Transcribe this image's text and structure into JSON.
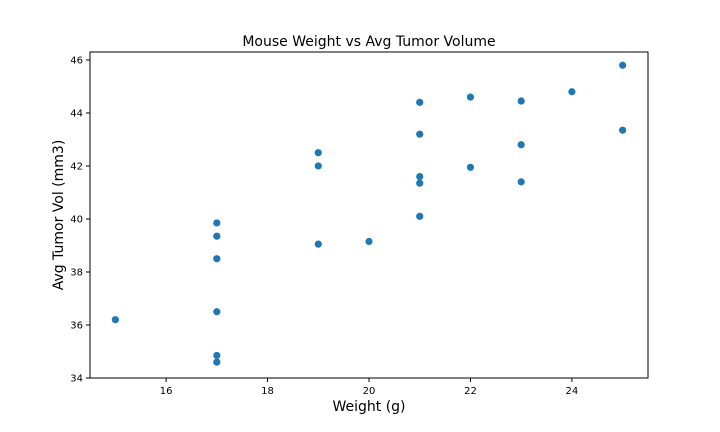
{
  "chart_data": {
    "type": "scatter",
    "title": "Mouse Weight vs Avg Tumor Volume",
    "xlabel": "Weight (g)",
    "ylabel": "Avg Tumor Vol (mm3)",
    "xlim": [
      14.5,
      25.5
    ],
    "ylim": [
      34,
      46.3
    ],
    "xticks": [
      16,
      18,
      20,
      22,
      24
    ],
    "yticks": [
      34,
      36,
      38,
      40,
      42,
      44,
      46
    ],
    "grid": false,
    "marker_color": "#1f77b4",
    "points": [
      {
        "x": 15,
        "y": 36.2
      },
      {
        "x": 17,
        "y": 34.6
      },
      {
        "x": 17,
        "y": 34.85
      },
      {
        "x": 17,
        "y": 36.5
      },
      {
        "x": 17,
        "y": 38.5
      },
      {
        "x": 17,
        "y": 39.35
      },
      {
        "x": 17,
        "y": 39.85
      },
      {
        "x": 19,
        "y": 39.05
      },
      {
        "x": 19,
        "y": 42.0
      },
      {
        "x": 19,
        "y": 42.5
      },
      {
        "x": 20,
        "y": 39.15
      },
      {
        "x": 21,
        "y": 40.1
      },
      {
        "x": 21,
        "y": 41.35
      },
      {
        "x": 21,
        "y": 41.6
      },
      {
        "x": 21,
        "y": 43.2
      },
      {
        "x": 21,
        "y": 44.4
      },
      {
        "x": 22,
        "y": 41.95
      },
      {
        "x": 22,
        "y": 44.6
      },
      {
        "x": 23,
        "y": 41.4
      },
      {
        "x": 23,
        "y": 42.8
      },
      {
        "x": 23,
        "y": 44.45
      },
      {
        "x": 24,
        "y": 44.8
      },
      {
        "x": 25,
        "y": 43.35
      },
      {
        "x": 25,
        "y": 45.8
      }
    ]
  }
}
